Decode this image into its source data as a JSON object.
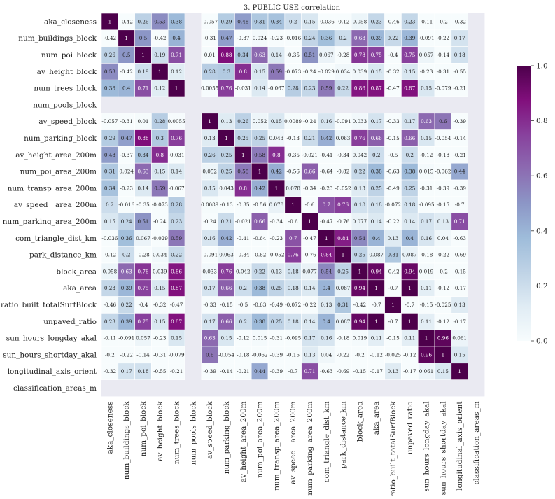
{
  "chart_data": {
    "type": "heatmap",
    "title": "3. PUBLIC USE correlation",
    "xlabel": "",
    "ylabel": "",
    "variables": [
      "aka_closeness",
      "num_buildings_block",
      "num_poi_block",
      "av_height_block",
      "num_trees_block",
      "num_pools_block",
      "av_speed_block",
      "num_parking_block",
      "av_height_area_200m",
      "num_poi_area_200m",
      "num_transp_area_200m",
      "av_speed__area_200m",
      "num_parking_area_200m",
      "com_triangle_dist_km",
      "park_distance_km",
      "block_area",
      "aka_area",
      "ratio_built_totalSurfBlock",
      "unpaved_ratio",
      "sun_hours_longday_akal",
      "sun_hours_shortday_akal",
      "longitudinal_axis_orient",
      "classification_areas_m"
    ],
    "matrix": [
      [
        1,
        -0.42,
        0.26,
        0.53,
        0.38,
        null,
        -0.057,
        0.29,
        0.48,
        0.31,
        0.34,
        0.2,
        0.15,
        -0.036,
        -0.12,
        0.058,
        0.23,
        -0.46,
        0.23,
        -0.11,
        -0.2,
        -0.32,
        null
      ],
      [
        -0.42,
        1,
        0.5,
        -0.42,
        0.4,
        null,
        -0.31,
        0.47,
        -0.37,
        0.024,
        -0.23,
        -0.016,
        0.24,
        0.36,
        0.2,
        0.63,
        0.39,
        0.22,
        0.39,
        -0.091,
        -0.22,
        0.17,
        null
      ],
      [
        0.26,
        0.5,
        1,
        0.19,
        0.71,
        null,
        0.01,
        0.88,
        0.34,
        0.63,
        0.14,
        -0.35,
        0.51,
        0.067,
        -0.28,
        0.78,
        0.75,
        -0.4,
        0.75,
        0.057,
        -0.14,
        0.18,
        null
      ],
      [
        0.53,
        -0.42,
        0.19,
        1,
        0.12,
        null,
        0.28,
        0.3,
        0.8,
        0.15,
        0.59,
        -0.073,
        -0.24,
        -0.029,
        0.034,
        0.039,
        0.15,
        -0.32,
        0.15,
        -0.23,
        -0.31,
        -0.55,
        null
      ],
      [
        0.38,
        0.4,
        0.71,
        0.12,
        1,
        null,
        0.0055,
        0.76,
        -0.031,
        0.14,
        -0.067,
        0.28,
        0.23,
        0.59,
        0.22,
        0.86,
        0.87,
        -0.47,
        0.87,
        0.15,
        -0.079,
        -0.21,
        null
      ],
      [
        null,
        null,
        null,
        null,
        null,
        null,
        null,
        null,
        null,
        null,
        null,
        null,
        null,
        null,
        null,
        null,
        null,
        null,
        null,
        null,
        null,
        null,
        null
      ],
      [
        -0.057,
        -0.31,
        0.01,
        0.28,
        0.0055,
        null,
        1,
        0.13,
        0.26,
        0.052,
        0.15,
        0.0089,
        -0.24,
        0.16,
        -0.091,
        0.033,
        0.17,
        -0.33,
        0.17,
        0.63,
        0.6,
        -0.39,
        null
      ],
      [
        0.29,
        0.47,
        0.88,
        0.3,
        0.76,
        null,
        0.13,
        1,
        0.25,
        0.25,
        0.043,
        -0.13,
        0.21,
        0.42,
        0.063,
        0.76,
        0.66,
        -0.15,
        0.66,
        0.15,
        -0.054,
        -0.14,
        null
      ],
      [
        0.48,
        -0.37,
        0.34,
        0.8,
        -0.031,
        null,
        0.26,
        0.25,
        1,
        0.58,
        0.8,
        -0.35,
        -0.021,
        -0.41,
        -0.34,
        0.042,
        0.2,
        -0.5,
        0.2,
        -0.12,
        -0.18,
        -0.21,
        null
      ],
      [
        0.31,
        0.024,
        0.63,
        0.15,
        0.14,
        null,
        0.052,
        0.25,
        0.58,
        1,
        0.42,
        -0.56,
        0.66,
        -0.64,
        -0.82,
        0.22,
        0.38,
        -0.63,
        0.38,
        0.015,
        -0.062,
        0.44,
        null
      ],
      [
        0.34,
        -0.23,
        0.14,
        0.59,
        -0.067,
        null,
        0.15,
        0.043,
        0.8,
        0.42,
        1,
        0.078,
        -0.34,
        -0.23,
        -0.052,
        0.13,
        0.25,
        -0.49,
        0.25,
        -0.31,
        -0.39,
        -0.39,
        null
      ],
      [
        0.2,
        -0.016,
        -0.35,
        -0.073,
        0.28,
        null,
        0.0089,
        -0.13,
        -0.35,
        -0.56,
        0.078,
        1,
        -0.6,
        0.7,
        0.76,
        0.18,
        0.18,
        -0.072,
        0.18,
        -0.095,
        -0.15,
        -0.7,
        null
      ],
      [
        0.15,
        0.24,
        0.51,
        -0.24,
        0.23,
        null,
        -0.24,
        0.21,
        -0.021,
        0.66,
        -0.34,
        -0.6,
        1,
        -0.47,
        -0.76,
        0.077,
        0.14,
        -0.22,
        0.14,
        0.17,
        0.13,
        0.71,
        null
      ],
      [
        -0.036,
        0.36,
        0.067,
        -0.029,
        0.59,
        null,
        0.16,
        0.42,
        -0.41,
        -0.64,
        -0.23,
        0.7,
        -0.47,
        1,
        0.84,
        0.54,
        0.4,
        0.13,
        0.4,
        0.16,
        0.04,
        -0.63,
        null
      ],
      [
        -0.12,
        0.2,
        -0.28,
        0.034,
        0.22,
        null,
        -0.091,
        0.063,
        -0.34,
        -0.82,
        -0.052,
        0.76,
        -0.76,
        0.84,
        1,
        0.25,
        0.087,
        0.31,
        0.087,
        -0.18,
        -0.22,
        -0.69,
        null
      ],
      [
        0.058,
        0.63,
        0.78,
        0.039,
        0.86,
        null,
        0.033,
        0.76,
        0.042,
        0.22,
        0.13,
        0.18,
        0.077,
        0.54,
        0.25,
        1,
        0.94,
        -0.42,
        0.94,
        0.019,
        -0.2,
        -0.15,
        null
      ],
      [
        0.23,
        0.39,
        0.75,
        0.15,
        0.87,
        null,
        0.17,
        0.66,
        0.2,
        0.38,
        0.25,
        0.18,
        0.14,
        0.4,
        0.087,
        0.94,
        1,
        -0.7,
        1,
        0.11,
        -0.12,
        -0.17,
        null
      ],
      [
        -0.46,
        0.22,
        -0.4,
        -0.32,
        -0.47,
        null,
        -0.33,
        -0.15,
        -0.5,
        -0.63,
        -0.49,
        -0.072,
        -0.22,
        0.13,
        0.31,
        -0.42,
        -0.7,
        1,
        -0.7,
        -0.15,
        -0.025,
        0.13,
        null
      ],
      [
        0.23,
        0.39,
        0.75,
        0.15,
        0.87,
        null,
        0.17,
        0.66,
        0.2,
        0.38,
        0.25,
        0.18,
        0.14,
        0.4,
        0.087,
        0.94,
        1,
        -0.7,
        1,
        0.11,
        -0.12,
        -0.17,
        null
      ],
      [
        -0.11,
        -0.091,
        0.057,
        -0.23,
        0.15,
        null,
        0.63,
        0.15,
        -0.12,
        0.015,
        -0.31,
        -0.095,
        0.17,
        0.16,
        -0.18,
        0.019,
        0.11,
        -0.15,
        0.11,
        1,
        0.96,
        0.061,
        null
      ],
      [
        -0.2,
        -0.22,
        -0.14,
        -0.31,
        -0.079,
        null,
        0.6,
        -0.054,
        -0.18,
        -0.062,
        -0.39,
        -0.15,
        0.13,
        0.04,
        -0.22,
        -0.2,
        -0.12,
        -0.025,
        -0.12,
        0.96,
        1,
        0.15,
        null
      ],
      [
        -0.32,
        0.17,
        0.18,
        -0.55,
        -0.21,
        null,
        -0.39,
        -0.14,
        -0.21,
        0.44,
        -0.39,
        -0.7,
        0.71,
        -0.63,
        -0.69,
        -0.15,
        -0.17,
        0.13,
        -0.17,
        0.061,
        0.15,
        1,
        null
      ],
      [
        null,
        null,
        null,
        null,
        null,
        null,
        null,
        null,
        null,
        null,
        null,
        null,
        null,
        null,
        null,
        null,
        null,
        null,
        null,
        null,
        null,
        null,
        null
      ]
    ],
    "colorscale": {
      "name": "BuPu",
      "vmin": 0.0,
      "vmax": 1.0,
      "ticks": [
        "0.0",
        "0.2",
        "0.4",
        "0.6",
        "0.8",
        "1.0"
      ],
      "stops": [
        "#f7fcfd",
        "#e0ecf4",
        "#bfd3e6",
        "#9ebcda",
        "#8c96c6",
        "#8c6bb1",
        "#88419d",
        "#810f7c",
        "#4d004b"
      ]
    },
    "missing_color": "#eaeaf2",
    "grid": false,
    "legend": "right"
  }
}
